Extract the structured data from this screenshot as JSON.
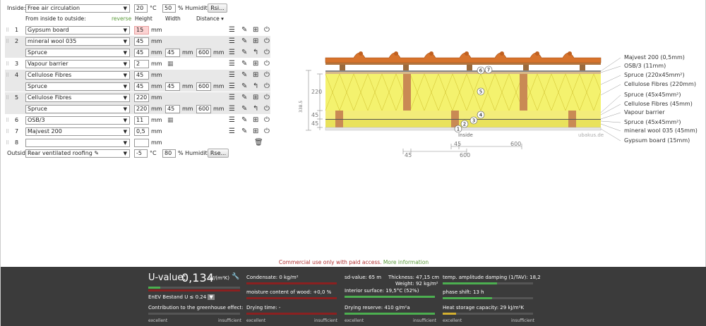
{
  "inside": {
    "label": "Inside:",
    "select": "Free air circulation",
    "temp": "20",
    "temp_unit": "°C",
    "humidity": "50",
    "humidity_unit": "% Humidity",
    "rsi_button": "Rsi..."
  },
  "headers": {
    "from": "From inside to outside:",
    "reverse": "reverse",
    "height": "Height",
    "width": "Width",
    "distance": "Distance"
  },
  "layers": [
    {
      "n": "1",
      "name": "Gypsum board",
      "h": "15",
      "highlight": true
    },
    {
      "n": "2",
      "name": "mineral wool 035",
      "h": "45"
    },
    {
      "n": "",
      "name": "Spruce",
      "h": "45",
      "w": "45",
      "d": "600"
    },
    {
      "n": "3",
      "name": "Vapour barrier",
      "h": "2"
    },
    {
      "n": "4",
      "name": "Cellulose Fibres",
      "h": "45"
    },
    {
      "n": "",
      "name": "Spruce",
      "h": "45",
      "w": "45",
      "d": "600"
    },
    {
      "n": "5",
      "name": "Cellulose Fibres",
      "h": "220"
    },
    {
      "n": "",
      "name": "Spruce",
      "h": "220",
      "w": "45",
      "d": "600"
    },
    {
      "n": "6",
      "name": "OSB/3",
      "h": "11"
    },
    {
      "n": "7",
      "name": "Majvest 200",
      "h": "0,5"
    },
    {
      "n": "8",
      "name": "",
      "h": ""
    }
  ],
  "unit_mm": "mm",
  "outside": {
    "label": "Outside",
    "select": "Rear ventilated roofing",
    "temp": "-5",
    "temp_unit": "°C",
    "humidity": "80",
    "humidity_unit": "% Humidity",
    "rse_button": "Rse..."
  },
  "diagram": {
    "legend": [
      "Majvest 200 (0,5mm)",
      "OSB/3 (11mm)",
      "Spruce (220x45mm²)",
      "Cellulose Fibres (220mm)",
      "Spruce (45x45mm²)",
      "Cellulose Fibres (45mm)",
      "Vapour barrier",
      "Spruce (45x45mm²)",
      "mineral wool 035 (45mm)",
      "Gypsum board (15mm)"
    ],
    "dim_total": "338.5",
    "dim_220": "220",
    "dim_45a": "45",
    "dim_45b": "45",
    "inside_label": "Inside",
    "watermark": "ubakus.de",
    "bottom_dims": [
      "45",
      "600",
      "45",
      "600"
    ],
    "markers": [
      "1",
      "2",
      "3",
      "4",
      "5",
      "6",
      "7"
    ]
  },
  "notice": {
    "text": "Commercial use only with paid access.",
    "link": "More information"
  },
  "results": {
    "uvalue_label": "U-value:",
    "uvalue": "0,134",
    "uvalue_unit": "W/(m²K)",
    "enev": "EnEV Bestand U ≤ 0.24",
    "greenhouse": "Contribution to the greenhouse effect:",
    "condensate": "Condensate: 0 kg/m²",
    "moisture": "moisture content of wood: +0,0 %",
    "drying_time": "Drying time: -",
    "sd": "sd-value: 65 m",
    "thickness": "Thickness: 47,15 cm",
    "weight": "Weight: 92 kg/m²",
    "interior_surface": "Interior surface: 19,5°C (52%)",
    "drying_reserve": "Drying reserve: 410 g/m²a",
    "amplitude": "temp. amplitude damping (1/TAV): 18,2",
    "phase": "phase shift: 13 h",
    "heat": "Heat storage capacity: 29 kJ/m²K",
    "excellent": "excellent",
    "insufficient": "insufficient"
  }
}
